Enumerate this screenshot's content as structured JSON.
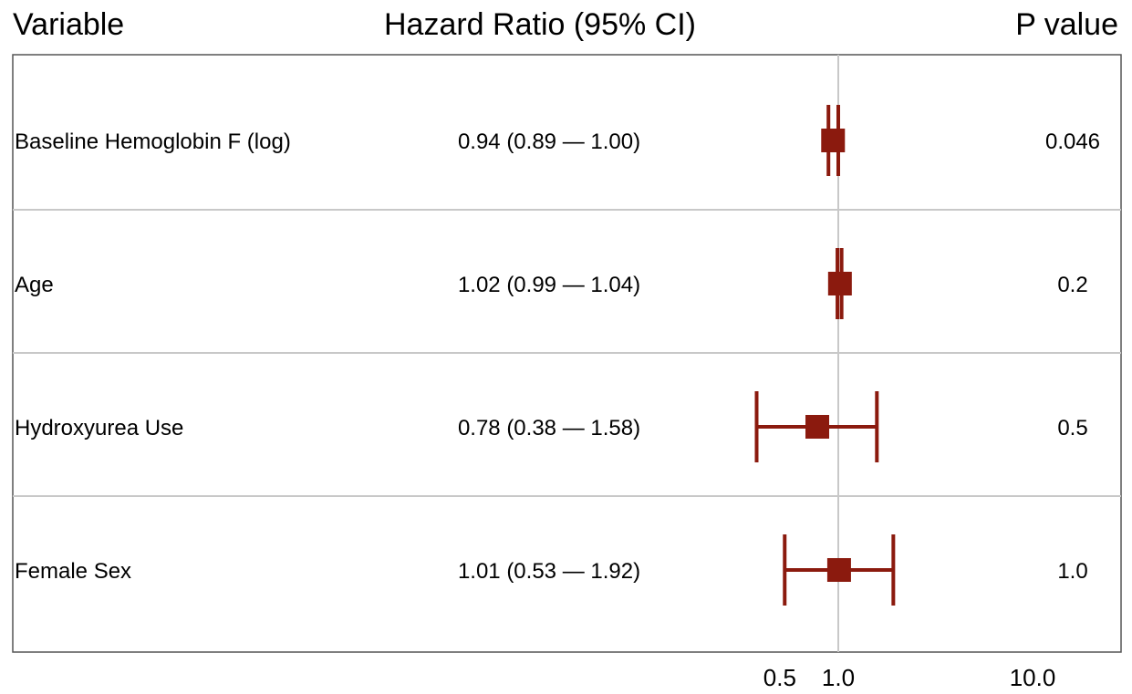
{
  "header": {
    "variable": "Variable",
    "hazard_ratio": "Hazard Ratio (95% CI)",
    "p_value": "P value"
  },
  "colors": {
    "marker": "#8B1A0E",
    "grid": "#c8c8c8",
    "border": "#555555"
  },
  "chart_data": {
    "type": "forest",
    "x_scale": "log",
    "reference_line": 1.0,
    "xlim": [
      0.2,
      15.0
    ],
    "x_ticks": [
      {
        "value": 0.5,
        "label": "0.5"
      },
      {
        "value": 1.0,
        "label": "1.0"
      },
      {
        "value": 10.0,
        "label": "10.0"
      }
    ],
    "rows": [
      {
        "variable": "Baseline Hemoglobin F (log)",
        "hr_text": "0.94 (0.89 — 1.00)",
        "p_value": "0.046",
        "hr": 0.94,
        "lower": 0.89,
        "upper": 1.0
      },
      {
        "variable": "Age",
        "hr_text": "1.02 (0.99 — 1.04)",
        "p_value": "0.2",
        "hr": 1.02,
        "lower": 0.99,
        "upper": 1.04
      },
      {
        "variable": "Hydroxyurea Use",
        "hr_text": "0.78 (0.38 — 1.58)",
        "p_value": "0.5",
        "hr": 0.78,
        "lower": 0.38,
        "upper": 1.58
      },
      {
        "variable": "Female Sex",
        "hr_text": "1.01 (0.53 — 1.92)",
        "p_value": "1.0",
        "hr": 1.01,
        "lower": 0.53,
        "upper": 1.92
      }
    ]
  }
}
